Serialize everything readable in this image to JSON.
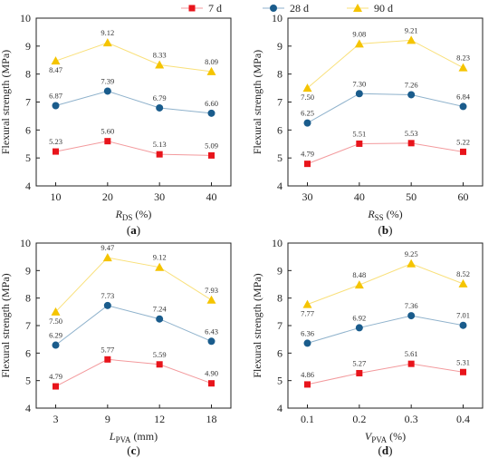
{
  "legend": [
    {
      "name": "7 d",
      "color": "#e8141b",
      "marker": "square"
    },
    {
      "name": "28 d",
      "color": "#1a5c8c",
      "marker": "circle"
    },
    {
      "name": "90 d",
      "color": "#f5c400",
      "marker": "triangle"
    }
  ],
  "chart_data": [
    {
      "type": "line",
      "panel_label": "a",
      "xlabel": {
        "main": "R",
        "sub": "DS",
        "unit": " (%)"
      },
      "ylabel": "Flexural strength (MPa)",
      "categories": [
        "10",
        "20",
        "30",
        "40"
      ],
      "ylim": [
        4,
        10
      ],
      "yticks": [
        4,
        5,
        6,
        7,
        8,
        9,
        10
      ],
      "series": [
        {
          "name": "7 d",
          "values": [
            5.23,
            5.6,
            5.13,
            5.09
          ],
          "labels": [
            "5.23",
            "5.60",
            "5.13",
            "5.09"
          ]
        },
        {
          "name": "28 d",
          "values": [
            6.87,
            7.39,
            6.79,
            6.6
          ],
          "labels": [
            "6.87",
            "7.39",
            "6.79",
            "6.60"
          ]
        },
        {
          "name": "90 d",
          "values": [
            8.47,
            9.12,
            8.33,
            8.09
          ],
          "labels": [
            "8.47",
            "9.12",
            "8.33",
            "8.09"
          ]
        }
      ]
    },
    {
      "type": "line",
      "panel_label": "b",
      "xlabel": {
        "main": "R",
        "sub": "SS",
        "unit": " (%)"
      },
      "ylabel": "Flexural strength (MPa)",
      "categories": [
        "30",
        "40",
        "50",
        "60"
      ],
      "ylim": [
        4,
        10
      ],
      "yticks": [
        4,
        5,
        6,
        7,
        8,
        9,
        10
      ],
      "series": [
        {
          "name": "7 d",
          "values": [
            4.79,
            5.51,
            5.53,
            5.22
          ],
          "labels": [
            "4.79",
            "5.51",
            "5.53",
            "5.22"
          ]
        },
        {
          "name": "28 d",
          "values": [
            6.25,
            7.3,
            7.26,
            6.84
          ],
          "labels": [
            "6.25",
            "7.30",
            "7.26",
            "6.84"
          ]
        },
        {
          "name": "90 d",
          "values": [
            7.5,
            9.08,
            9.21,
            8.23
          ],
          "labels": [
            "7.50",
            "9.08",
            "9.21",
            "8.23"
          ]
        }
      ]
    },
    {
      "type": "line",
      "panel_label": "c",
      "xlabel": {
        "main": "L",
        "sub": "PVA",
        "unit": " (mm)"
      },
      "ylabel": "Flexural strength (MPa)",
      "categories": [
        "3",
        "9",
        "12",
        "18"
      ],
      "ylim": [
        4,
        10
      ],
      "yticks": [
        4,
        5,
        6,
        7,
        8,
        9,
        10
      ],
      "series": [
        {
          "name": "7 d",
          "values": [
            4.79,
            5.77,
            5.59,
            4.9
          ],
          "labels": [
            "4.79",
            "5.77",
            "5.59",
            "4.90"
          ]
        },
        {
          "name": "28 d",
          "values": [
            6.29,
            7.73,
            7.24,
            6.43
          ],
          "labels": [
            "6.29",
            "7.73",
            "7.24",
            "6.43"
          ]
        },
        {
          "name": "90 d",
          "values": [
            7.5,
            9.47,
            9.12,
            7.93
          ],
          "labels": [
            "7.50",
            "9.47",
            "9.12",
            "7.93"
          ]
        }
      ]
    },
    {
      "type": "line",
      "panel_label": "d",
      "xlabel": {
        "main": "V",
        "sub": "PVA",
        "unit": " (%)"
      },
      "ylabel": "Flexural strength (MPa)",
      "categories": [
        "0.1",
        "0.2",
        "0.3",
        "0.4"
      ],
      "ylim": [
        4,
        10
      ],
      "yticks": [
        4,
        5,
        6,
        7,
        8,
        9,
        10
      ],
      "series": [
        {
          "name": "7 d",
          "values": [
            4.86,
            5.27,
            5.61,
            5.31
          ],
          "labels": [
            "4.86",
            "5.27",
            "5.61",
            "5.31"
          ]
        },
        {
          "name": "28 d",
          "values": [
            6.36,
            6.92,
            7.36,
            7.01
          ],
          "labels": [
            "6.36",
            "6.92",
            "7.36",
            "7.01"
          ]
        },
        {
          "name": "90 d",
          "values": [
            7.77,
            8.48,
            9.25,
            8.52
          ],
          "labels": [
            "7.77",
            "8.48",
            "9.25",
            "8.52"
          ]
        }
      ]
    }
  ]
}
